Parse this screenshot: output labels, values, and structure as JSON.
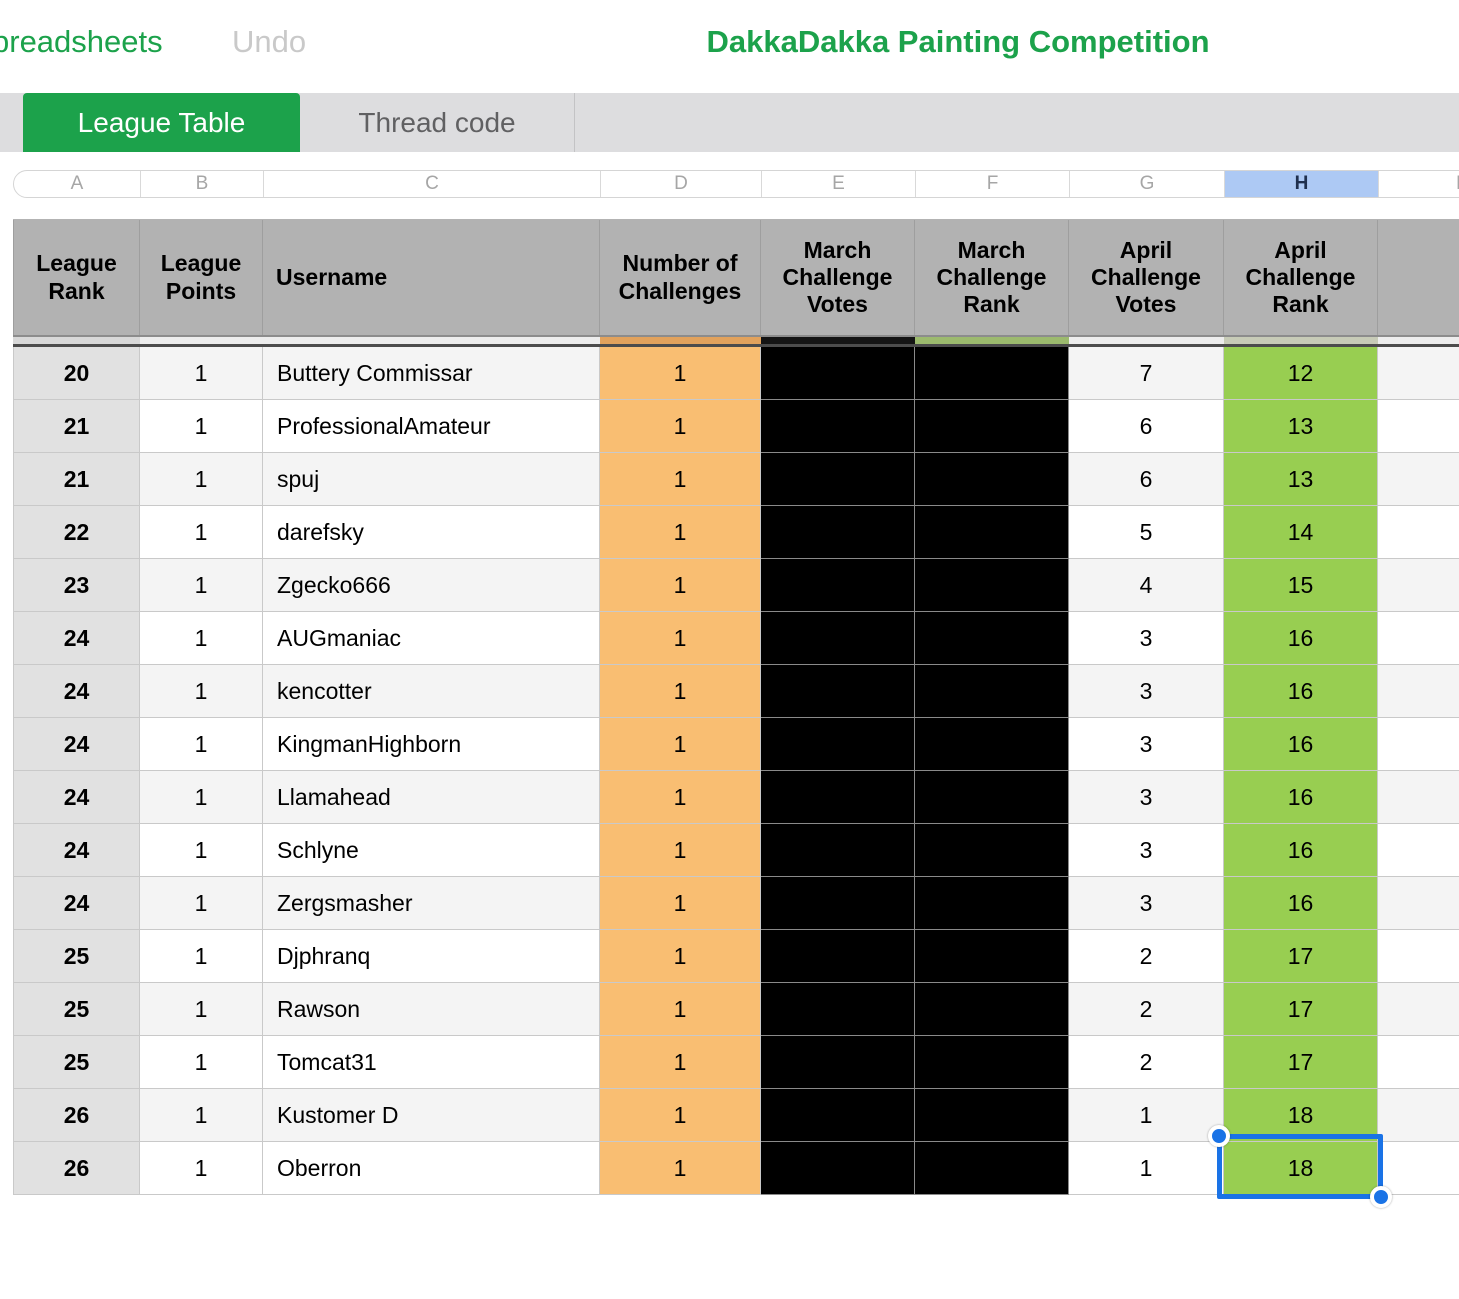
{
  "top_bar": {
    "back_label": "preadsheets",
    "undo_label": "Undo",
    "title": "DakkaDakka Painting Competition"
  },
  "tabs": [
    {
      "label": "League Table",
      "active": true
    },
    {
      "label": "Thread code",
      "active": false
    }
  ],
  "column_letters": [
    "A",
    "B",
    "C",
    "D",
    "E",
    "F",
    "G",
    "H",
    "I"
  ],
  "selected_column_letter": "H",
  "table": {
    "headers": [
      "League Rank",
      "League Points",
      "Username",
      "Number of Challenges",
      "March Challenge Votes",
      "March Challenge Rank",
      "April Challenge Votes",
      "April Challenge Rank",
      ""
    ],
    "rows": [
      {
        "league_rank": "20",
        "league_points": "1",
        "username": "Buttery Commissar",
        "num_challenges": "1",
        "march_votes": "",
        "march_rank": "",
        "april_votes": "7",
        "april_rank": "12"
      },
      {
        "league_rank": "21",
        "league_points": "1",
        "username": "ProfessionalAmateur",
        "num_challenges": "1",
        "march_votes": "",
        "march_rank": "",
        "april_votes": "6",
        "april_rank": "13"
      },
      {
        "league_rank": "21",
        "league_points": "1",
        "username": "spuj",
        "num_challenges": "1",
        "march_votes": "",
        "march_rank": "",
        "april_votes": "6",
        "april_rank": "13"
      },
      {
        "league_rank": "22",
        "league_points": "1",
        "username": "darefsky",
        "num_challenges": "1",
        "march_votes": "",
        "march_rank": "",
        "april_votes": "5",
        "april_rank": "14"
      },
      {
        "league_rank": "23",
        "league_points": "1",
        "username": "Zgecko666",
        "num_challenges": "1",
        "march_votes": "",
        "march_rank": "",
        "april_votes": "4",
        "april_rank": "15"
      },
      {
        "league_rank": "24",
        "league_points": "1",
        "username": "AUGmaniac",
        "num_challenges": "1",
        "march_votes": "",
        "march_rank": "",
        "april_votes": "3",
        "april_rank": "16"
      },
      {
        "league_rank": "24",
        "league_points": "1",
        "username": "kencotter",
        "num_challenges": "1",
        "march_votes": "",
        "march_rank": "",
        "april_votes": "3",
        "april_rank": "16"
      },
      {
        "league_rank": "24",
        "league_points": "1",
        "username": "KingmanHighborn",
        "num_challenges": "1",
        "march_votes": "",
        "march_rank": "",
        "april_votes": "3",
        "april_rank": "16"
      },
      {
        "league_rank": "24",
        "league_points": "1",
        "username": "Llamahead",
        "num_challenges": "1",
        "march_votes": "",
        "march_rank": "",
        "april_votes": "3",
        "april_rank": "16"
      },
      {
        "league_rank": "24",
        "league_points": "1",
        "username": "Schlyne",
        "num_challenges": "1",
        "march_votes": "",
        "march_rank": "",
        "april_votes": "3",
        "april_rank": "16"
      },
      {
        "league_rank": "24",
        "league_points": "1",
        "username": "Zergsmasher",
        "num_challenges": "1",
        "march_votes": "",
        "march_rank": "",
        "april_votes": "3",
        "april_rank": "16"
      },
      {
        "league_rank": "25",
        "league_points": "1",
        "username": "Djphranq",
        "num_challenges": "1",
        "march_votes": "",
        "march_rank": "",
        "april_votes": "2",
        "april_rank": "17"
      },
      {
        "league_rank": "25",
        "league_points": "1",
        "username": "Rawson",
        "num_challenges": "1",
        "march_votes": "",
        "march_rank": "",
        "april_votes": "2",
        "april_rank": "17"
      },
      {
        "league_rank": "25",
        "league_points": "1",
        "username": "Tomcat31",
        "num_challenges": "1",
        "march_votes": "",
        "march_rank": "",
        "april_votes": "2",
        "april_rank": "17"
      },
      {
        "league_rank": "26",
        "league_points": "1",
        "username": "Kustomer D",
        "num_challenges": "1",
        "march_votes": "",
        "march_rank": "",
        "april_votes": "1",
        "april_rank": "18"
      },
      {
        "league_rank": "26",
        "league_points": "1",
        "username": "Oberron",
        "num_challenges": "1",
        "march_votes": "",
        "march_rank": "",
        "april_votes": "1",
        "april_rank": "18"
      }
    ],
    "selected_cell": {
      "row_username": "Oberron",
      "column": "April Challenge Rank",
      "value": "18"
    }
  },
  "colors": {
    "brand_green": "#1ca24b",
    "selection_blue": "#1a73e6",
    "column_highlight_blue": "#adc9f4",
    "header_gray": "#b2b2b2",
    "challenges_orange": "#f9be72",
    "rank_green": "#98ce51",
    "blackout": "#000000"
  }
}
